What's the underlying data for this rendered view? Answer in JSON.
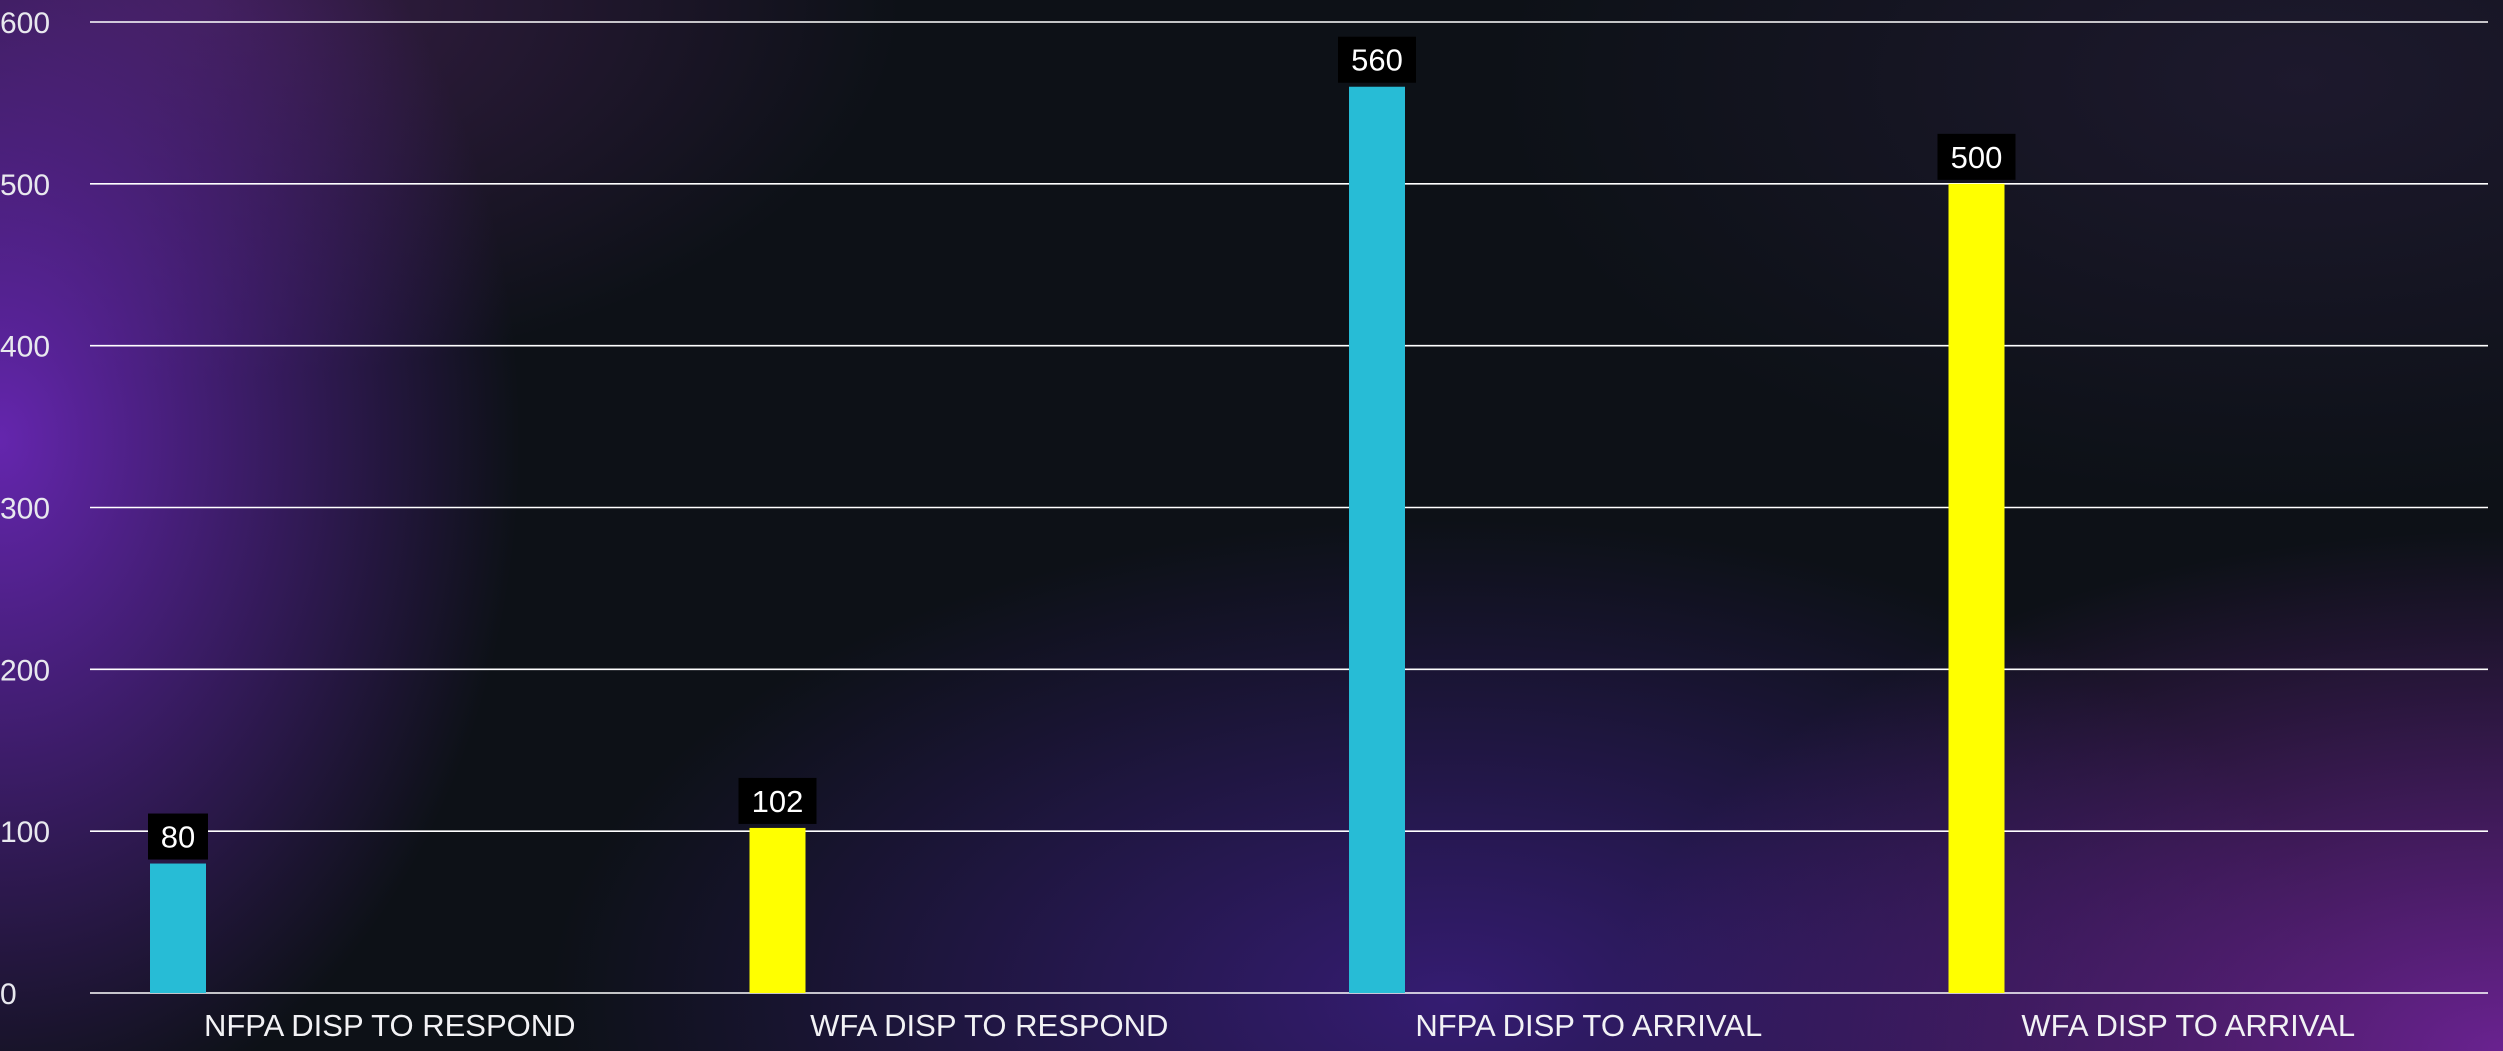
{
  "chart_data": {
    "type": "bar",
    "categories": [
      "NFPA DISP TO RESPOND",
      "WFA DISP TO RESPOND",
      "NFPA DISP TO ARRIVAL",
      "WFA DISP TO ARRIVAL"
    ],
    "values": [
      80,
      102,
      560,
      500
    ],
    "bar_colors": [
      "#27bcd6",
      "#ffff00",
      "#27bcd6",
      "#ffff00"
    ],
    "ylim": [
      0,
      600
    ],
    "yticks": [
      0,
      100,
      200,
      300,
      400,
      500,
      600
    ],
    "grid": true,
    "data_labels": true,
    "legend": "none"
  },
  "colors": {
    "grid": "#ffffff",
    "tick_text": "#e8e8ee",
    "label_box": "#000000",
    "label_text": "#ffffff"
  }
}
